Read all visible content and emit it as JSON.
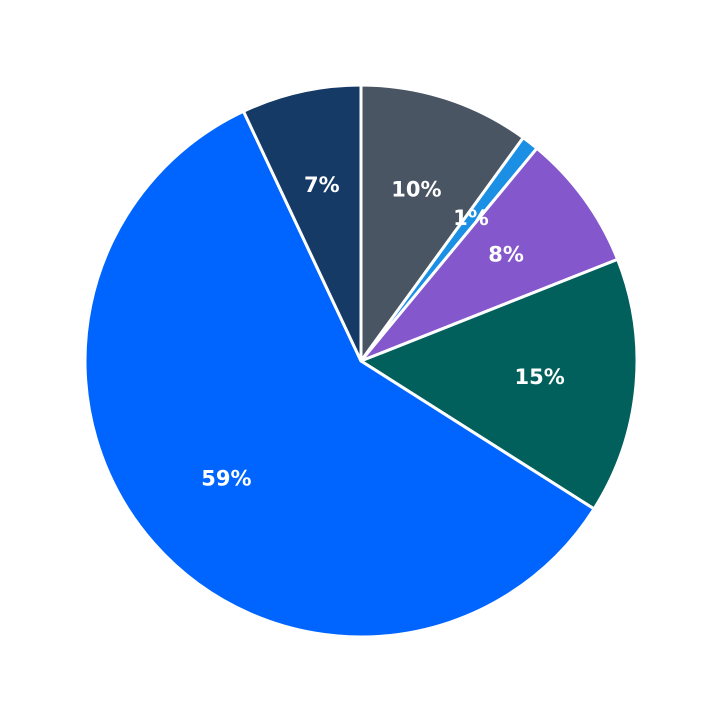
{
  "chart_data": {
    "type": "pie",
    "values": [
      10,
      1,
      8,
      15,
      59,
      7
    ],
    "value_labels": [
      "10%",
      "1%",
      "8%",
      "15%",
      "59%",
      "7%"
    ],
    "colors": [
      "#4a5563",
      "#1a8fe3",
      "#8457cc",
      "#015f5c",
      "#0065ff",
      "#143a65"
    ]
  }
}
